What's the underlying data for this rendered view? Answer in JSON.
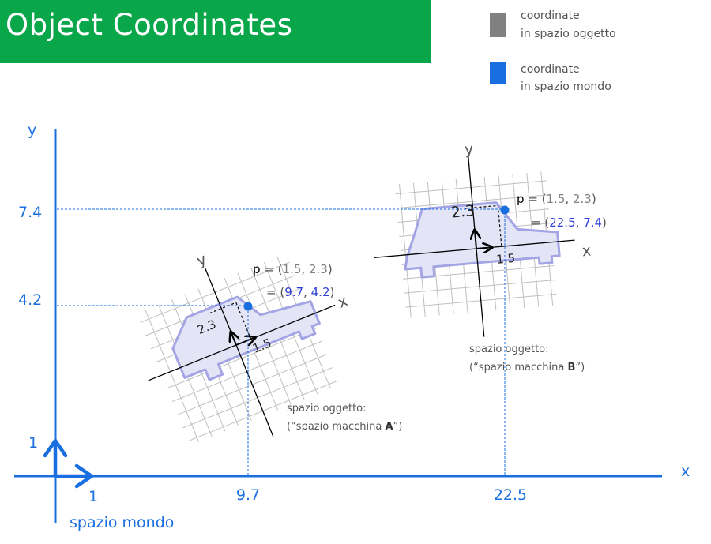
{
  "title": "Object Coordinates",
  "legend": {
    "object_label_1": "coordinate",
    "object_label_2": "in spazio oggetto",
    "world_label_1": "coordinate",
    "world_label_2": "in spazio mondo"
  },
  "colors": {
    "title_bg": "#0aa74a",
    "world": "#1a6fe0",
    "object": "#808080",
    "world_dark": "#2b3fd6",
    "car_fill": "#e3e4f6",
    "car_stroke": "#a3a4e4",
    "grid": "#bfbfbf"
  },
  "world": {
    "x_axis": "x",
    "y_axis": "y",
    "unit_x": "1",
    "unit_y": "1",
    "space_label": "spazio mondo",
    "x_ticks": [
      "9.7",
      "22.5"
    ],
    "y_ticks": [
      "4.2",
      "7.4"
    ]
  },
  "car_a": {
    "x_axis": "x",
    "y_axis": "y",
    "len_x": "1.5",
    "len_y": "2.3",
    "p_label": "p",
    "eq": "=",
    "open": "(",
    "comma": ",",
    "close": ")",
    "obj_x": "1.5",
    "obj_y": "2.3",
    "world_x": "9.7",
    "world_y": "4.2",
    "caption_1": "spazio oggetto:",
    "caption_2_prefix": "(“spazio macchina ",
    "caption_2_letter": "A",
    "caption_2_suffix": "”)"
  },
  "car_b": {
    "x_axis": "x",
    "y_axis": "y",
    "len_x": "1.5",
    "len_y": "2.3",
    "p_label": "p",
    "eq": "=",
    "open": "(",
    "comma": ",",
    "close": ")",
    "obj_x": "1.5",
    "obj_y": "2.3",
    "world_x": "22.5",
    "world_y": "7.4",
    "caption_1": "spazio oggetto:",
    "caption_2_prefix": "(“spazio macchina ",
    "caption_2_letter": "B",
    "caption_2_suffix": "”)"
  }
}
